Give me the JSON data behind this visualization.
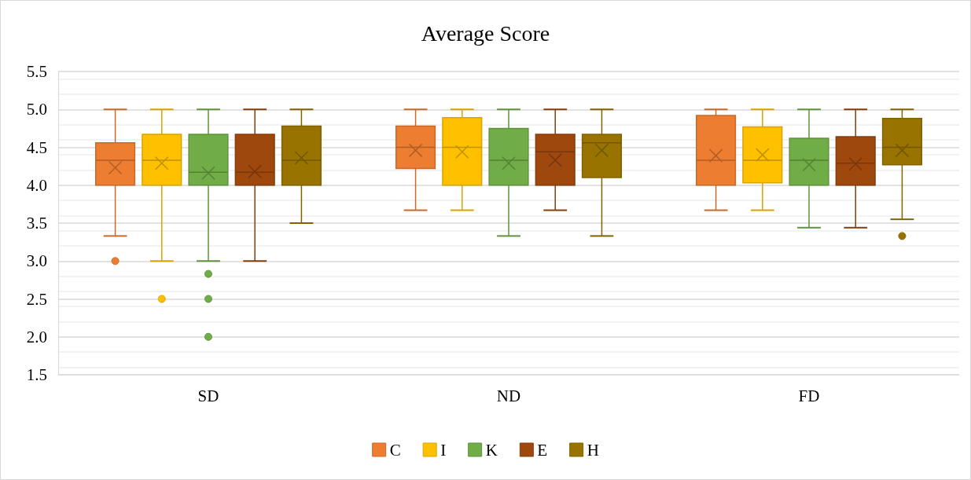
{
  "chart_data": {
    "type": "box",
    "title": "Average Score",
    "categories": [
      "SD",
      "ND",
      "FD"
    ],
    "ylim": [
      1.5,
      5.5
    ],
    "yticks": [
      {
        "value": 1.5,
        "label": "1.5"
      },
      {
        "value": 2,
        "label": "2.0"
      },
      {
        "value": 2.5,
        "label": "2.5"
      },
      {
        "value": 3,
        "label": "3.0"
      },
      {
        "value": 3.5,
        "label": "3.5"
      },
      {
        "value": 4,
        "label": "4.0"
      },
      {
        "value": 4.5,
        "label": "4.5"
      },
      {
        "value": 5,
        "label": "5.0"
      },
      {
        "value": 5.5,
        "label": "5.5"
      }
    ],
    "grid": "y",
    "legend": "bottom",
    "series": [
      {
        "name": "C",
        "color": "#ed7d31",
        "boxes": [
          {
            "low": 3.33,
            "q1": 4,
            "median": 4.33,
            "q3": 4.56,
            "high": 5,
            "mean": 4.23,
            "outliers": [
              3
            ]
          },
          {
            "low": 3.67,
            "q1": 4.22,
            "median": 4.5,
            "q3": 4.78,
            "high": 5,
            "mean": 4.46
          },
          {
            "low": 3.67,
            "q1": 4,
            "median": 4.33,
            "q3": 4.92,
            "high": 5,
            "mean": 4.39
          }
        ]
      },
      {
        "name": "I",
        "color": "#ffc000",
        "boxes": [
          {
            "low": 3,
            "q1": 4,
            "median": 4.33,
            "q3": 4.67,
            "high": 5,
            "mean": 4.29,
            "outliers": [
              2.5
            ]
          },
          {
            "low": 3.67,
            "q1": 4,
            "median": 4.5,
            "q3": 4.89,
            "high": 5,
            "mean": 4.44
          },
          {
            "low": 3.67,
            "q1": 4.03,
            "median": 4.33,
            "q3": 4.77,
            "high": 5,
            "mean": 4.4
          }
        ]
      },
      {
        "name": "K",
        "color": "#70ad47",
        "boxes": [
          {
            "low": 3,
            "q1": 4,
            "median": 4.17,
            "q3": 4.67,
            "high": 5,
            "mean": 4.16,
            "outliers": [
              2.83,
              2.5,
              2
            ]
          },
          {
            "low": 3.33,
            "q1": 4,
            "median": 4.33,
            "q3": 4.75,
            "high": 5,
            "mean": 4.29
          },
          {
            "low": 3.44,
            "q1": 4,
            "median": 4.33,
            "q3": 4.62,
            "high": 5,
            "mean": 4.27
          }
        ]
      },
      {
        "name": "E",
        "color": "#9e480e",
        "boxes": [
          {
            "low": 3,
            "q1": 4,
            "median": 4.17,
            "q3": 4.67,
            "high": 5,
            "mean": 4.18
          },
          {
            "low": 3.67,
            "q1": 4,
            "median": 4.44,
            "q3": 4.67,
            "high": 5,
            "mean": 4.33
          },
          {
            "low": 3.44,
            "q1": 4,
            "median": 4.29,
            "q3": 4.64,
            "high": 5,
            "mean": 4.28
          }
        ]
      },
      {
        "name": "H",
        "color": "#997300",
        "boxes": [
          {
            "low": 3.5,
            "q1": 4,
            "median": 4.33,
            "q3": 4.78,
            "high": 5,
            "mean": 4.36
          },
          {
            "low": 3.33,
            "q1": 4.1,
            "median": 4.56,
            "q3": 4.67,
            "high": 5,
            "mean": 4.46
          },
          {
            "low": 3.55,
            "q1": 4.27,
            "median": 4.5,
            "q3": 4.88,
            "high": 5,
            "mean": 4.46,
            "outliers": [
              3.33
            ]
          }
        ]
      }
    ]
  }
}
